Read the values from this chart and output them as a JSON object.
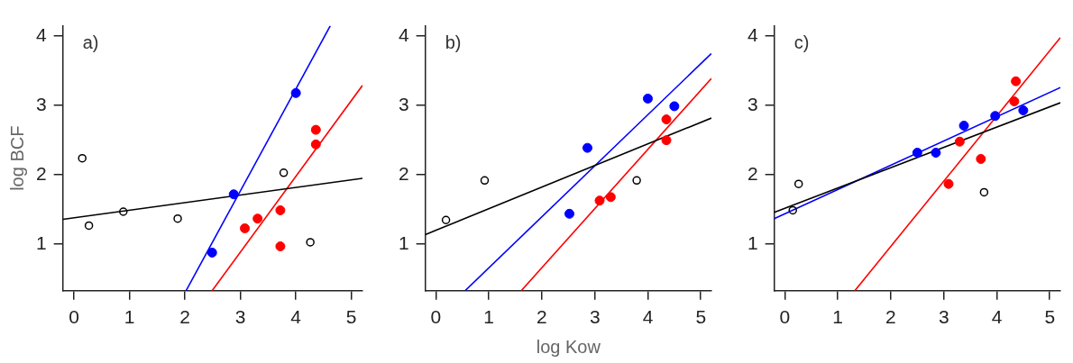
{
  "chart_data": [
    {
      "type": "scatter",
      "annotations": [
        "a)"
      ],
      "ylabel": "log BCF",
      "xlim": [
        -0.2,
        5.2
      ],
      "ylim": [
        0.33,
        4.15
      ],
      "xticks": [
        0,
        1,
        2,
        3,
        4,
        5
      ],
      "yticks": [
        1,
        2,
        3,
        4
      ],
      "grid": false,
      "legend": false,
      "marker": "circle",
      "series": [
        {
          "color": "#000000",
          "x": [
            0.15,
            0.27,
            0.89,
            1.87,
            3.78,
            4.26
          ],
          "values": [
            2.24,
            1.27,
            1.47,
            1.37,
            2.03,
            1.03
          ]
        },
        {
          "color": "#0000ff",
          "x": [
            2.49,
            2.88,
            4.0
          ],
          "values": [
            0.88,
            1.72,
            3.18
          ]
        },
        {
          "color": "#ff0000",
          "x": [
            3.08,
            3.31,
            3.72,
            3.72,
            4.36,
            4.36
          ],
          "values": [
            1.23,
            1.37,
            1.49,
            0.97,
            2.65,
            2.44
          ]
        },
        {
          "type": "line",
          "marker": "none",
          "color": "#000000",
          "x": [
            -0.2,
            5.2
          ],
          "values": [
            1.36,
            1.95
          ]
        },
        {
          "type": "line",
          "marker": "none",
          "color": "#0000ff",
          "x": [
            2.02,
            4.62
          ],
          "values": [
            0.33,
            4.15
          ]
        },
        {
          "type": "line",
          "marker": "none",
          "color": "#ff0000",
          "x": [
            2.49,
            5.2
          ],
          "values": [
            0.33,
            3.29
          ]
        }
      ]
    },
    {
      "type": "scatter",
      "annotations": [
        "b)"
      ],
      "xlabel": "log Kow",
      "xlim": [
        -0.2,
        5.2
      ],
      "ylim": [
        0.33,
        4.15
      ],
      "xticks": [
        0,
        1,
        2,
        3,
        4,
        5
      ],
      "yticks": [
        1,
        2,
        3,
        4
      ],
      "grid": false,
      "legend": false,
      "marker": "circle",
      "series": [
        {
          "color": "#000000",
          "x": [
            0.19,
            0.92,
            3.79
          ],
          "values": [
            1.35,
            1.92,
            1.92
          ]
        },
        {
          "color": "#0000ff",
          "x": [
            2.52,
            2.86,
            4.0,
            4.5
          ],
          "values": [
            1.44,
            2.39,
            3.1,
            2.99
          ]
        },
        {
          "color": "#ff0000",
          "x": [
            3.09,
            3.3,
            4.35,
            4.35
          ],
          "values": [
            1.63,
            1.68,
            2.8,
            2.5
          ]
        },
        {
          "type": "line",
          "marker": "none",
          "color": "#000000",
          "x": [
            -0.2,
            5.2
          ],
          "values": [
            1.14,
            2.82
          ]
        },
        {
          "type": "line",
          "marker": "none",
          "color": "#0000ff",
          "x": [
            0.55,
            5.2
          ],
          "values": [
            0.33,
            3.75
          ]
        },
        {
          "type": "line",
          "marker": "none",
          "color": "#ff0000",
          "x": [
            1.61,
            5.2
          ],
          "values": [
            0.33,
            3.39
          ]
        }
      ]
    },
    {
      "type": "scatter",
      "annotations": [
        "c)"
      ],
      "xlim": [
        -0.2,
        5.2
      ],
      "ylim": [
        0.33,
        4.15
      ],
      "xticks": [
        0,
        1,
        2,
        3,
        4,
        5
      ],
      "yticks": [
        1,
        2,
        3,
        4
      ],
      "grid": false,
      "legend": false,
      "marker": "circle",
      "series": [
        {
          "color": "#000000",
          "x": [
            0.15,
            0.26,
            3.76
          ],
          "values": [
            1.49,
            1.87,
            1.75
          ]
        },
        {
          "color": "#0000ff",
          "x": [
            2.5,
            2.85,
            3.38,
            3.97,
            4.5
          ],
          "values": [
            2.32,
            2.32,
            2.71,
            2.85,
            2.93
          ]
        },
        {
          "color": "#ff0000",
          "x": [
            3.09,
            3.3,
            3.7,
            4.33,
            4.36
          ],
          "values": [
            1.87,
            2.48,
            2.23,
            3.06,
            3.35
          ]
        },
        {
          "type": "line",
          "marker": "none",
          "color": "#000000",
          "x": [
            -0.2,
            5.2
          ],
          "values": [
            1.46,
            3.04
          ]
        },
        {
          "type": "line",
          "marker": "none",
          "color": "#0000ff",
          "x": [
            -0.2,
            5.2
          ],
          "values": [
            1.37,
            3.26
          ]
        },
        {
          "type": "line",
          "marker": "none",
          "color": "#ff0000",
          "x": [
            1.32,
            5.2
          ],
          "values": [
            0.33,
            3.98
          ]
        }
      ]
    }
  ]
}
